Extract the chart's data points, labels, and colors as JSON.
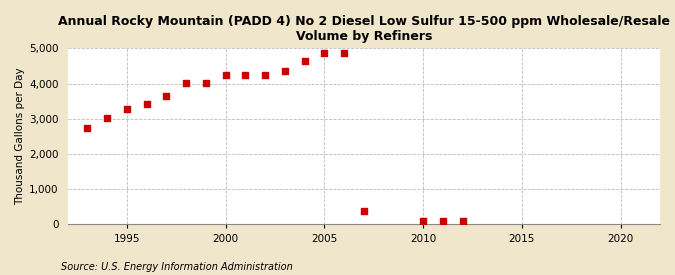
{
  "title": "Annual Rocky Mountain (PADD 4) No 2 Diesel Low Sulfur 15-500 ppm Wholesale/Resale\nVolume by Refiners",
  "ylabel": "Thousand Gallons per Day",
  "source": "Source: U.S. Energy Information Administration",
  "bg_outer": "#f0e6cc",
  "bg_plot": "#ffffff",
  "marker_color": "#cc0000",
  "years": [
    1993,
    1994,
    1995,
    1996,
    1997,
    1998,
    1999,
    2000,
    2001,
    2002,
    2003,
    2004,
    2005,
    2006,
    2007,
    2010,
    2011,
    2012
  ],
  "values": [
    2740,
    3020,
    3270,
    3430,
    3660,
    4020,
    4020,
    4230,
    4240,
    4250,
    4370,
    4650,
    4870,
    4880,
    380,
    85,
    85,
    110
  ],
  "xlim": [
    1992,
    2022
  ],
  "ylim": [
    0,
    5000
  ],
  "xticks": [
    1995,
    2000,
    2005,
    2010,
    2015,
    2020
  ],
  "yticks": [
    0,
    1000,
    2000,
    3000,
    4000,
    5000
  ],
  "title_fontsize": 9,
  "ylabel_fontsize": 7.5,
  "tick_fontsize": 7.5,
  "source_fontsize": 7
}
